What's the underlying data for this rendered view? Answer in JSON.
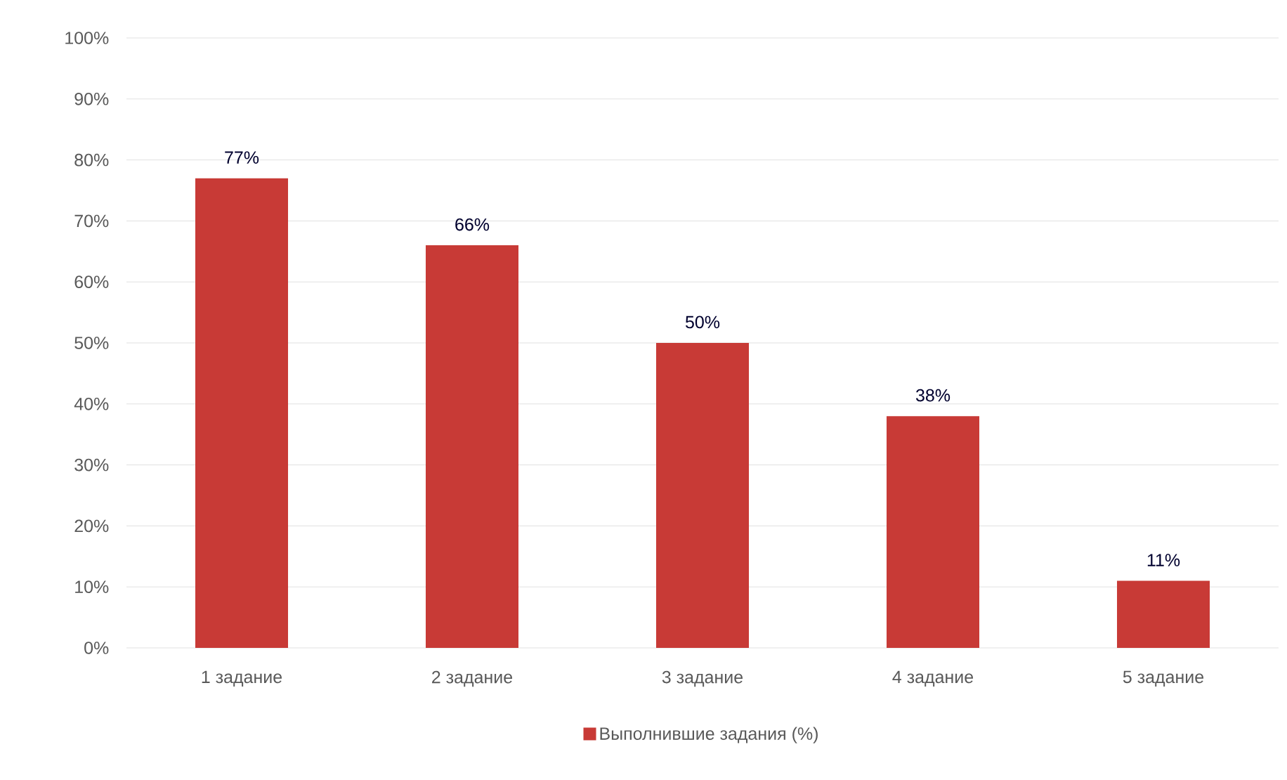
{
  "chart_data": {
    "type": "bar",
    "categories": [
      "1 задание",
      "2 задание",
      "3 задание",
      "4 задание",
      "5 задание"
    ],
    "series": [
      {
        "name": "Выполнившие задания (%)",
        "color": "#c83a36",
        "values": [
          77,
          66,
          50,
          38,
          11
        ],
        "value_labels": [
          "77%",
          "66%",
          "50%",
          "38%",
          "11%"
        ]
      }
    ],
    "ylim": [
      0,
      100
    ],
    "yticks": [
      {
        "value": 0,
        "label": "0%"
      },
      {
        "value": 10,
        "label": "10%"
      },
      {
        "value": 20,
        "label": "20%"
      },
      {
        "value": 30,
        "label": "30%"
      },
      {
        "value": 40,
        "label": "40%"
      },
      {
        "value": 50,
        "label": "50%"
      },
      {
        "value": 60,
        "label": "60%"
      },
      {
        "value": 70,
        "label": "70%"
      },
      {
        "value": 80,
        "label": "80%"
      },
      {
        "value": 90,
        "label": "90%"
      },
      {
        "value": 100,
        "label": "100%"
      }
    ],
    "grid": "y",
    "legend": "bottom"
  }
}
